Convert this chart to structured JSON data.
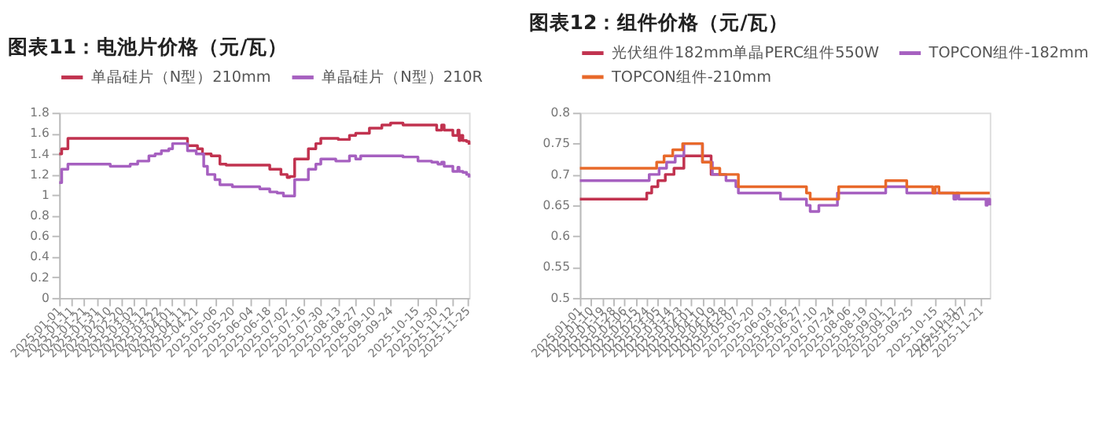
{
  "chart_data": [
    {
      "type": "step",
      "title": "图表11：电池片价格（元/瓦）",
      "legend": "top",
      "grid": false,
      "xlim": [
        "2025-01-01",
        "2025-11-26"
      ],
      "xticks": [
        "2025-01-01",
        "2025-01-11",
        "2025-01-21",
        "2025-01-31",
        "2025-02-10",
        "2025-02-20",
        "2025-03-02",
        "2025-03-12",
        "2025-03-22",
        "2025-04-01",
        "2025-04-11",
        "2025-04-21",
        "2025-05-06",
        "2025-05-20",
        "2025-06-04",
        "2025-06-18",
        "2025-07-02",
        "2025-07-16",
        "2025-07-30",
        "2025-08-13",
        "2025-08-27",
        "2025-09-10",
        "2025-09-24",
        "2025-10-15",
        "2025-10-30",
        "2025-11-12",
        "2025-11-25"
      ],
      "ylim": [
        0,
        1.8
      ],
      "yticks": [
        0,
        0.2,
        0.4,
        0.6,
        0.8,
        1,
        1.2,
        1.4,
        1.6,
        1.8
      ],
      "series": [
        {
          "name": "单晶硅片（N型）210mm",
          "color": "#c1324f",
          "x": [
            "2025-01-01",
            "2025-01-03",
            "2025-01-08",
            "2025-04-14",
            "2025-04-22",
            "2025-04-26",
            "2025-05-03",
            "2025-05-10",
            "2025-05-15",
            "2025-06-19",
            "2025-06-28",
            "2025-07-03",
            "2025-07-05",
            "2025-07-09",
            "2025-07-20",
            "2025-07-26",
            "2025-07-30",
            "2025-08-13",
            "2025-08-22",
            "2025-08-27",
            "2025-09-07",
            "2025-09-17",
            "2025-09-24",
            "2025-10-04",
            "2025-10-31",
            "2025-11-04",
            "2025-11-06",
            "2025-11-13",
            "2025-11-17",
            "2025-11-18",
            "2025-11-19",
            "2025-11-21",
            "2025-11-24",
            "2025-11-26"
          ],
          "values": [
            1.4,
            1.45,
            1.55,
            1.48,
            1.45,
            1.4,
            1.38,
            1.3,
            1.29,
            1.25,
            1.2,
            1.17,
            1.18,
            1.35,
            1.45,
            1.5,
            1.55,
            1.54,
            1.58,
            1.6,
            1.65,
            1.68,
            1.7,
            1.68,
            1.63,
            1.68,
            1.63,
            1.58,
            1.63,
            1.53,
            1.58,
            1.53,
            1.52,
            1.49
          ]
        },
        {
          "name": "单晶硅片（N型）210R",
          "color": "#a660c0",
          "x": [
            "2025-01-01",
            "2025-01-03",
            "2025-01-08",
            "2025-02-11",
            "2025-02-27",
            "2025-03-05",
            "2025-03-14",
            "2025-03-19",
            "2025-03-24",
            "2025-03-30",
            "2025-04-02",
            "2025-04-14",
            "2025-04-21",
            "2025-04-27",
            "2025-04-30",
            "2025-05-06",
            "2025-05-10",
            "2025-05-20",
            "2025-06-11",
            "2025-06-19",
            "2025-06-25",
            "2025-06-30",
            "2025-07-09",
            "2025-07-20",
            "2025-07-26",
            "2025-07-30",
            "2025-08-11",
            "2025-08-22",
            "2025-08-27",
            "2025-08-31",
            "2025-10-04",
            "2025-10-16",
            "2025-10-27",
            "2025-11-01",
            "2025-11-04",
            "2025-11-06",
            "2025-11-13",
            "2025-11-17",
            "2025-11-18",
            "2025-11-21",
            "2025-11-24",
            "2025-11-26"
          ],
          "values": [
            1.12,
            1.25,
            1.3,
            1.28,
            1.3,
            1.33,
            1.38,
            1.4,
            1.43,
            1.45,
            1.5,
            1.43,
            1.4,
            1.28,
            1.2,
            1.15,
            1.1,
            1.08,
            1.06,
            1.03,
            1.02,
            0.99,
            1.15,
            1.25,
            1.3,
            1.35,
            1.33,
            1.38,
            1.35,
            1.38,
            1.37,
            1.33,
            1.32,
            1.3,
            1.32,
            1.28,
            1.23,
            1.27,
            1.23,
            1.22,
            1.2,
            1.17
          ]
        }
      ]
    },
    {
      "type": "step",
      "title": "图表12：组件价格（元/瓦）",
      "legend": "top",
      "grid": false,
      "xlim": [
        "2025-01-01",
        "2025-11-28"
      ],
      "xticks": [
        "2025-01-01",
        "2025-01-10",
        "2025-01-19",
        "2025-01-28",
        "2025-02-06",
        "2025-02-15",
        "2025-02-24",
        "2025-03-05",
        "2025-03-14",
        "2025-03-23",
        "2025-04-01",
        "2025-04-10",
        "2025-04-19",
        "2025-04-28",
        "2025-05-07",
        "2025-05-20",
        "2025-06-03",
        "2025-06-16",
        "2025-06-27",
        "2025-07-10",
        "2025-07-24",
        "2025-08-06",
        "2025-08-19",
        "2025-09-01",
        "2025-09-12",
        "2025-09-25",
        "2025-10-15",
        "2025-10-31",
        "2025-11-07",
        "2025-11-21"
      ],
      "ylim": [
        0.5,
        0.8
      ],
      "yticks": [
        0.5,
        0.55,
        0.6,
        0.65,
        0.7,
        0.75,
        0.8
      ],
      "series": [
        {
          "name": "光伏组件182mm单晶PERC组件550W",
          "color": "#c1324f",
          "x": [
            "2025-01-01",
            "2025-02-24",
            "2025-02-28",
            "2025-03-05",
            "2025-03-11",
            "2025-03-18",
            "2025-03-26",
            "2025-04-17",
            "2025-04-28"
          ],
          "values": [
            0.66,
            0.67,
            0.68,
            0.69,
            0.7,
            0.71,
            0.73,
            0.7,
            0.7
          ]
        },
        {
          "name": "TOPCON组件-182mm",
          "color": "#a660c0",
          "x": [
            "2025-01-01",
            "2025-02-26",
            "2025-03-06",
            "2025-03-12",
            "2025-03-19",
            "2025-03-26",
            "2025-04-10",
            "2025-04-18",
            "2025-04-29",
            "2025-05-07",
            "2025-05-09",
            "2025-06-12",
            "2025-07-03",
            "2025-07-06",
            "2025-07-13",
            "2025-07-28",
            "2025-09-05",
            "2025-09-22",
            "2025-10-30",
            "2025-11-01",
            "2025-11-03",
            "2025-11-25",
            "2025-11-26",
            "2025-11-28"
          ],
          "values": [
            0.69,
            0.7,
            0.71,
            0.72,
            0.73,
            0.75,
            0.72,
            0.7,
            0.69,
            0.68,
            0.67,
            0.66,
            0.65,
            0.64,
            0.65,
            0.67,
            0.68,
            0.67,
            0.66,
            0.67,
            0.66,
            0.65,
            0.66,
            0.65
          ]
        },
        {
          "name": "TOPCON组件-210mm",
          "color": "#e8692a",
          "x": [
            "2025-01-01",
            "2025-03-04",
            "2025-03-10",
            "2025-03-17",
            "2025-03-25",
            "2025-04-10",
            "2025-04-17",
            "2025-04-24",
            "2025-05-09",
            "2025-07-03",
            "2025-07-06",
            "2025-07-29",
            "2025-09-05",
            "2025-09-22",
            "2025-10-13",
            "2025-10-15",
            "2025-10-18",
            "2025-11-28"
          ],
          "values": [
            0.71,
            0.72,
            0.73,
            0.74,
            0.75,
            0.72,
            0.71,
            0.7,
            0.68,
            0.67,
            0.66,
            0.68,
            0.69,
            0.68,
            0.67,
            0.68,
            0.67,
            0.67
          ]
        }
      ]
    }
  ]
}
